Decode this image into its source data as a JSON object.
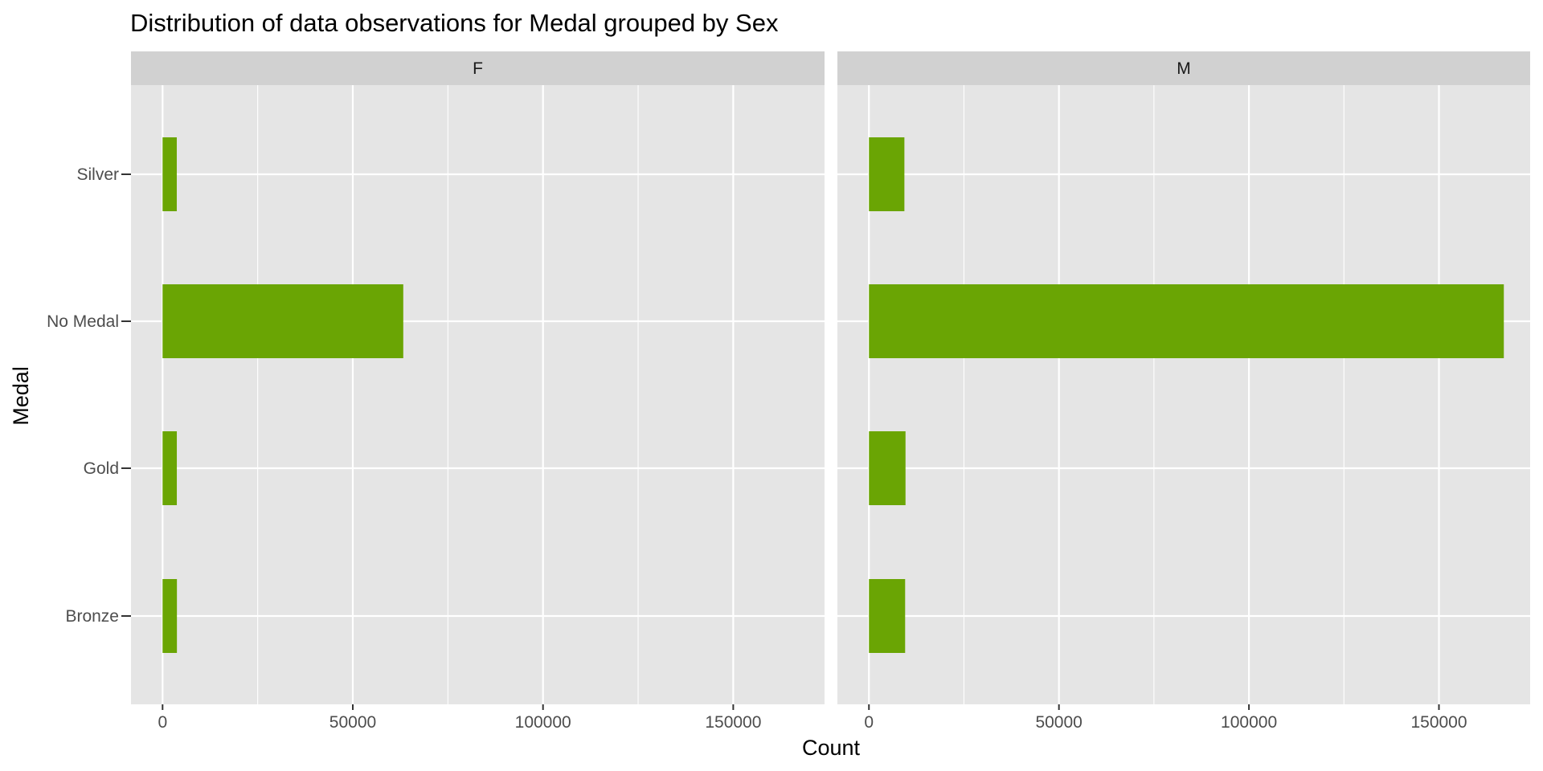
{
  "chart_data": {
    "type": "bar",
    "orientation": "horizontal",
    "title": "Distribution of data observations for Medal grouped by Sex",
    "xlabel": "Count",
    "ylabel": "Medal",
    "categories": [
      "Bronze",
      "Gold",
      "No Medal",
      "Silver"
    ],
    "xlim": [
      -8300,
      174000
    ],
    "x_ticks": [
      0,
      50000,
      100000,
      150000
    ],
    "x_tick_labels": [
      "0",
      "50000",
      "100000",
      "150000"
    ],
    "grid": true,
    "facet_variable": "Sex",
    "panels": [
      {
        "label": "F",
        "values": [
          3771,
          3747,
          63269,
          3735
        ]
      },
      {
        "label": "M",
        "values": [
          9524,
          9625,
          167075,
          9331
        ]
      }
    ],
    "colors": {
      "bar": "#6AA504",
      "panel_background": "#E5E5E5",
      "strip_background": "#D1D1D1",
      "grid": "#FFFFFF"
    }
  }
}
